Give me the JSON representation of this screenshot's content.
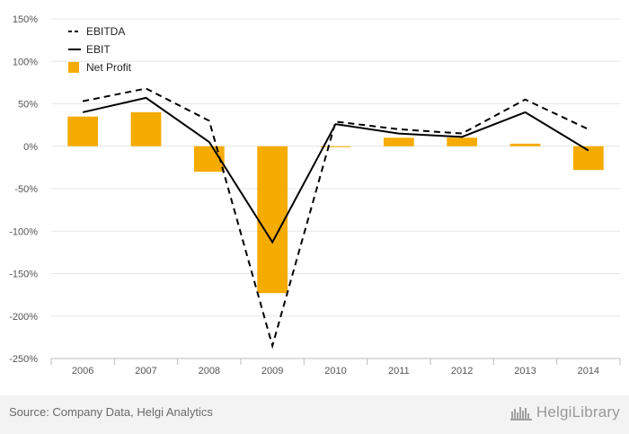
{
  "chart_data": {
    "type": "bar+line",
    "categories": [
      "2006",
      "2007",
      "2008",
      "2009",
      "2010",
      "2011",
      "2012",
      "2013",
      "2014"
    ],
    "series": [
      {
        "name": "EBITDA",
        "type": "line",
        "style": "dashed",
        "color": "#000000",
        "values": [
          53,
          68,
          30,
          -235,
          29,
          20,
          15,
          55,
          20
        ]
      },
      {
        "name": "EBIT",
        "type": "line",
        "style": "solid",
        "color": "#000000",
        "values": [
          40,
          57,
          5,
          -113,
          26,
          15,
          11,
          40,
          -5
        ]
      },
      {
        "name": "Net Profit",
        "type": "bar",
        "color": "#f5ab00",
        "values": [
          35,
          40,
          -30,
          -173,
          -1,
          10,
          10,
          3,
          -28
        ]
      }
    ],
    "yticks": [
      "150%",
      "100%",
      "50%",
      "0%",
      "-50%",
      "-100%",
      "-150%",
      "-200%",
      "-250%"
    ],
    "ytick_values": [
      150,
      100,
      50,
      0,
      -50,
      -100,
      -150,
      -200,
      -250
    ],
    "ylim": [
      -250,
      150
    ],
    "grid": true,
    "legend_position": "top-left"
  },
  "footer": {
    "source": "Source: Company Data, Helgi Analytics",
    "brand_name": "HelgiLibrary"
  }
}
